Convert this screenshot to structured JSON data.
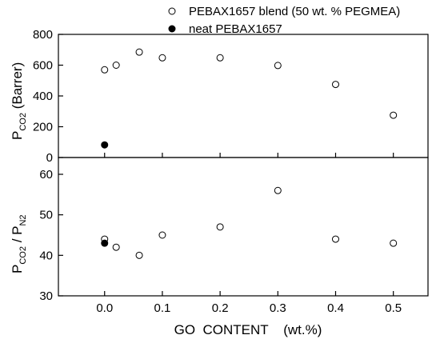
{
  "chart_data": [
    {
      "type": "scatter",
      "panel": "top",
      "ylabel_main": "P",
      "ylabel_sub": "CO2",
      "ylabel_unit": " (Barrer)",
      "xlim": [
        -0.08,
        0.56
      ],
      "ylim": [
        0,
        800
      ],
      "yticks": [
        0,
        200,
        400,
        600,
        800
      ],
      "series": [
        {
          "name": "PEBAX1657 blend (50 wt. % PEGMEA)",
          "marker": "open-circle",
          "x": [
            0.0,
            0.02,
            0.06,
            0.1,
            0.2,
            0.3,
            0.4,
            0.5
          ],
          "y": [
            570,
            600,
            685,
            648,
            648,
            598,
            475,
            275
          ]
        },
        {
          "name": "neat PEBAX1657",
          "marker": "filled-circle",
          "x": [
            0.0
          ],
          "y": [
            82
          ]
        }
      ]
    },
    {
      "type": "scatter",
      "panel": "bottom",
      "ylabel_main1": "P",
      "ylabel_sub1": "CO2",
      "ylabel_mid": " / P",
      "ylabel_sub2": "N2",
      "xlabel": "GO  CONTENT    (wt.%)",
      "xlim": [
        -0.08,
        0.56
      ],
      "ylim": [
        30,
        60
      ],
      "yticks": [
        30,
        40,
        50,
        60
      ],
      "xticks": [
        "0.0",
        "0.1",
        "0.2",
        "0.3",
        "0.4",
        "0.5"
      ],
      "series": [
        {
          "name": "PEBAX1657 blend (50 wt. % PEGMEA)",
          "marker": "open-circle",
          "x": [
            0.0,
            0.02,
            0.06,
            0.1,
            0.2,
            0.3,
            0.4,
            0.5
          ],
          "y": [
            44,
            42,
            40,
            45,
            47,
            56,
            44,
            43
          ]
        },
        {
          "name": "neat PEBAX1657",
          "marker": "filled-circle",
          "x": [
            0.0
          ],
          "y": [
            43
          ]
        }
      ]
    }
  ],
  "legend": {
    "placement": "top-right",
    "items": [
      {
        "label": "PEBAX1657 blend (50 wt. % PEGMEA)",
        "marker": "open-circle"
      },
      {
        "label": "neat PEBAX1657",
        "marker": "filled-circle"
      }
    ]
  }
}
